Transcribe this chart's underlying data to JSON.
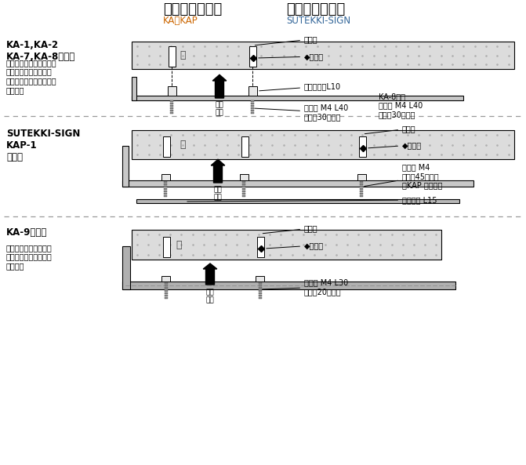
{
  "title_left": "コーナーサイン",
  "title_right": "ステッキサイン",
  "subtitle_left": "KA・KAP",
  "subtitle_right": "SUTEKKI-SIGN",
  "subtitle_color": "#cc6600",
  "subtitle_right_color": "#336699",
  "bg_color": "#ffffff",
  "wall_color": "#dcdcdc",
  "wall_dot_color": "#b0b0b0",
  "section1_label": "KA-1,KA-2\nKA-7,KA-8の場合",
  "section1_note": "裏側にボルトが溶接して\nありますので付属のス\nペーサーで浮かせて固定\nします。",
  "section1_annot1": "取付穴",
  "section1_annot2": "◆接着剤",
  "section1_annot3": "スペーサーL10",
  "section1_annot4": "ボルト M4 L40\n出幅（30）２本",
  "section1_annot5": "KA-8のみ\nボルト M4 L40\n出幅（30）４本",
  "section1_press": "圧着\n固定",
  "section2_label": "SUTEKKI-SIGN\nKAP-1\nの場合",
  "section2_annot1": "取付穴",
  "section2_annot2": "◆接着剤",
  "section2_annot3": "ボルト M4\n出幅（45）３本\n（KAP は２本）",
  "section2_annot4": "丸ナット L15",
  "section2_press": "圧着\n固定",
  "section3_label": "KA-9の場合",
  "section3_note": "タイル表面にも接着剤\nを塗布し、取り付けて\n下さい。",
  "section3_annot1": "取付穴",
  "section3_annot2": "◆接着剤",
  "section3_annot3": "ボルト M4 L30\n出幅（20）２本",
  "section3_press": "圧着\n固定",
  "kabe_label": "壁"
}
